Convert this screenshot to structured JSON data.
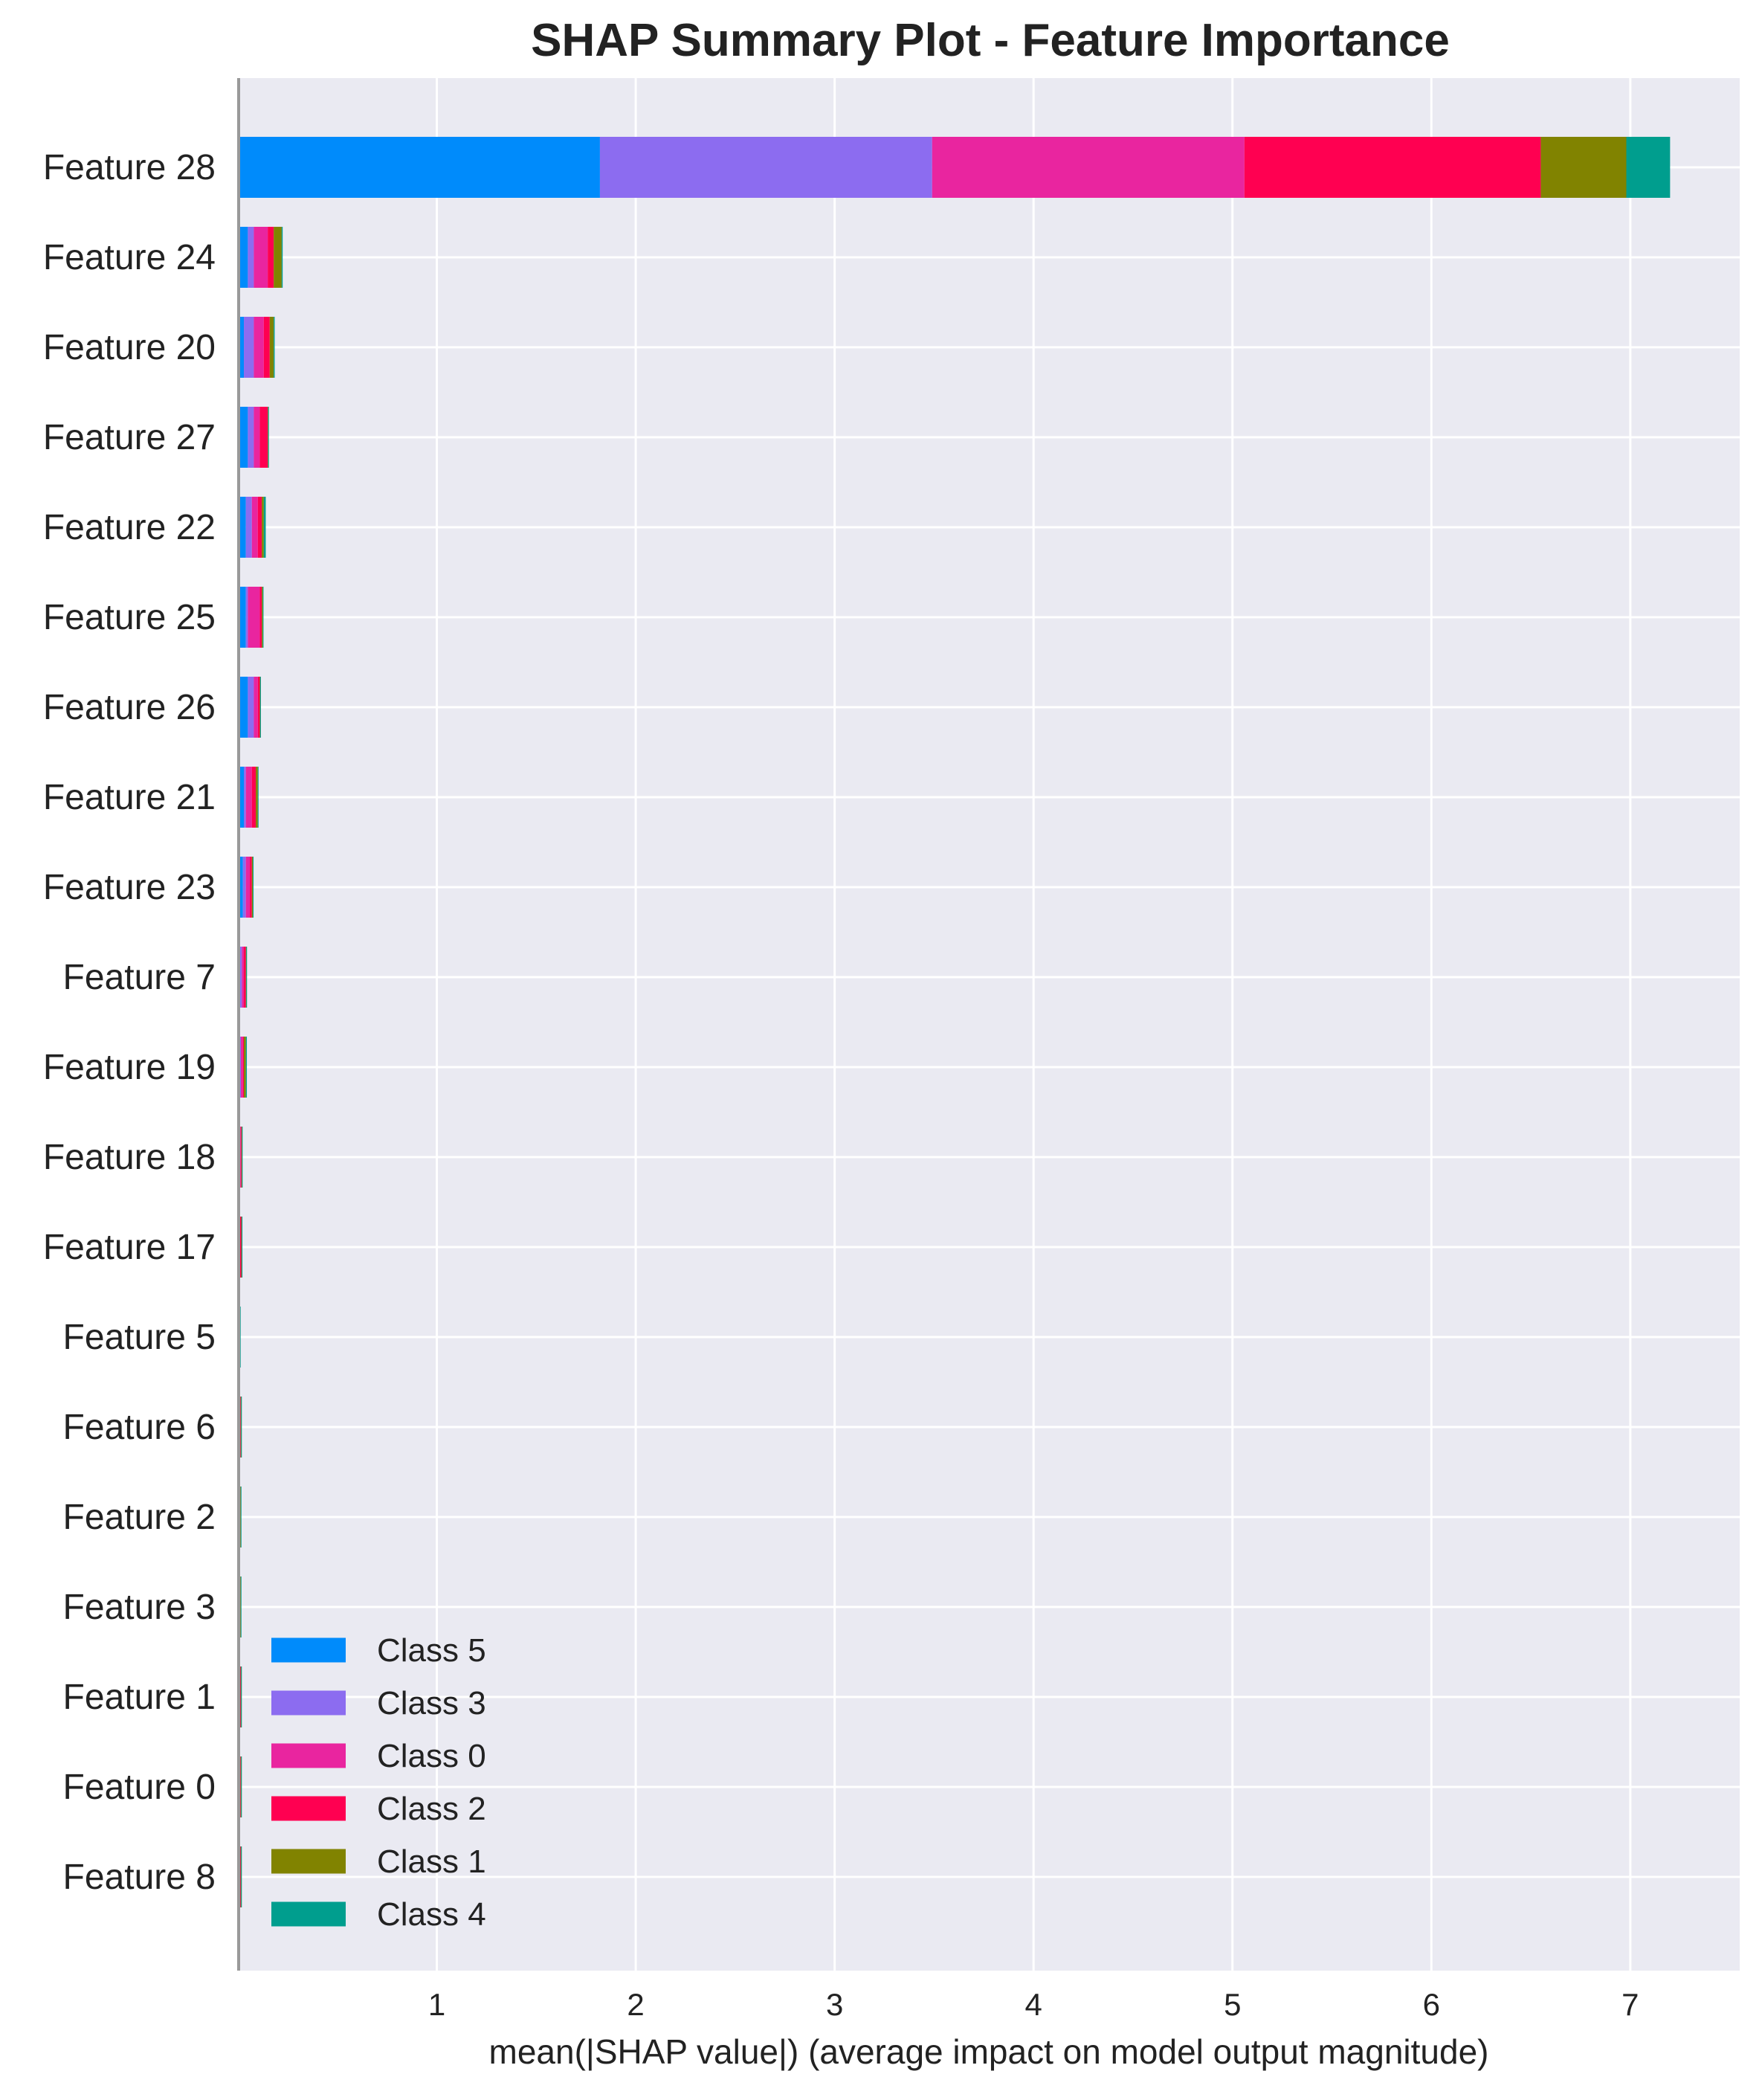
{
  "chart_data": {
    "type": "bar",
    "orientation": "horizontal",
    "stacked": true,
    "title": "SHAP Summary Plot - Feature Importance",
    "xlabel": "mean(|SHAP value|) (average impact on model output magnitude)",
    "ylabel": "",
    "xlim": [
      0,
      7.55
    ],
    "xticks": [
      1,
      2,
      3,
      4,
      5,
      6,
      7
    ],
    "grid": true,
    "legend_position": "bottom-left",
    "categories": [
      "Feature 28",
      "Feature 24",
      "Feature 20",
      "Feature 27",
      "Feature 22",
      "Feature 25",
      "Feature 26",
      "Feature 21",
      "Feature 23",
      "Feature 7",
      "Feature 19",
      "Feature 18",
      "Feature 17",
      "Feature 5",
      "Feature 6",
      "Feature 2",
      "Feature 3",
      "Feature 1",
      "Feature 0",
      "Feature 8"
    ],
    "series": [
      {
        "name": "Class 5",
        "color": "#008bfb",
        "values": [
          1.82,
          0.05,
          0.03,
          0.05,
          0.04,
          0.04,
          0.05,
          0.03,
          0.025,
          0.01,
          0.01,
          0.002,
          0.002,
          0.002,
          0.002,
          0.002,
          0.002,
          0.008,
          0.002,
          0.002
        ]
      },
      {
        "name": "Class 3",
        "color": "#8c6cf0",
        "values": [
          1.67,
          0.03,
          0.05,
          0.03,
          0.03,
          0.01,
          0.03,
          0.01,
          0.015,
          0.01,
          0.005,
          0.002,
          0.002,
          0.002,
          0.004,
          0.002,
          0.002,
          0.002,
          0.002,
          0.008
        ]
      },
      {
        "name": "Class 0",
        "color": "#e9259f",
        "values": [
          1.57,
          0.07,
          0.05,
          0.03,
          0.03,
          0.06,
          0.02,
          0.03,
          0.02,
          0.01,
          0.01,
          0.01,
          0.005,
          0.002,
          0.006,
          0.004,
          0.004,
          0.002,
          0.006,
          0.002
        ]
      },
      {
        "name": "Class 2",
        "color": "#ff0051",
        "values": [
          1.49,
          0.03,
          0.03,
          0.04,
          0.02,
          0.01,
          0.01,
          0.02,
          0.01,
          0.01,
          0.005,
          0.004,
          0.008,
          0.002,
          0.002,
          0.004,
          0.004,
          0.002,
          0.004,
          0.002
        ]
      },
      {
        "name": "Class 1",
        "color": "#818300",
        "values": [
          0.43,
          0.04,
          0.02,
          0.002,
          0.01,
          0.005,
          0.002,
          0.01,
          0.005,
          0.002,
          0.01,
          0.002,
          0.002,
          0.002,
          0.002,
          0.002,
          0.002,
          0.002,
          0.002,
          0.002
        ]
      },
      {
        "name": "Class 4",
        "color": "#009e8e",
        "values": [
          0.22,
          0.005,
          0.005,
          0.002,
          0.01,
          0.002,
          0.002,
          0.002,
          0.002,
          0.002,
          0.005,
          0.002,
          0.002,
          0.002,
          0.002,
          0.002,
          0.002,
          0.002,
          0.002,
          0.002
        ]
      }
    ],
    "legend_order": [
      "Class 5",
      "Class 3",
      "Class 0",
      "Class 2",
      "Class 1",
      "Class 4"
    ],
    "colors": {
      "plot_background": "#eaeaf2",
      "grid": "#ffffff",
      "left_axis": "#999999"
    }
  }
}
